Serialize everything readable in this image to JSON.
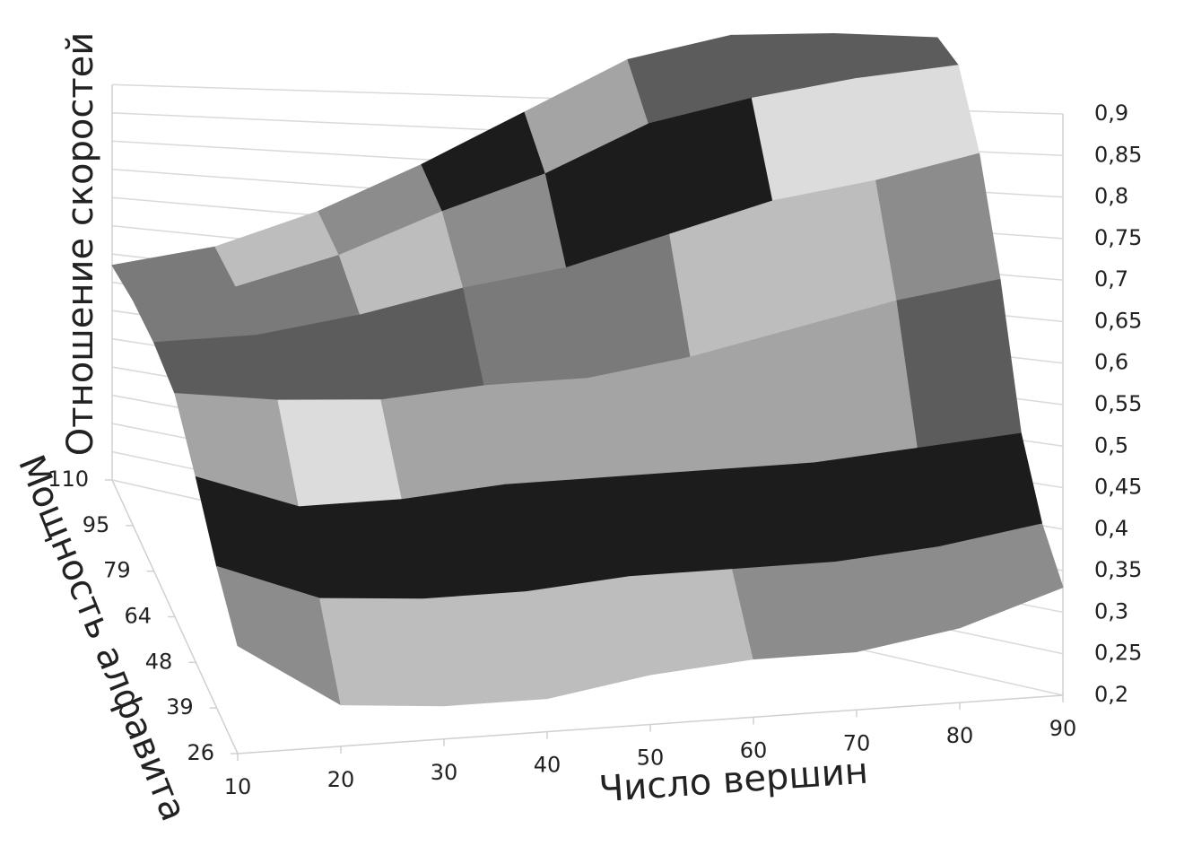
{
  "chart_data": {
    "type": "surface",
    "title": "Отношение скоростей",
    "x_label": "Число вершин",
    "depth_label": "Мощность алфавита",
    "x": [
      10,
      20,
      30,
      40,
      50,
      60,
      70,
      80,
      90
    ],
    "depth_categories": [
      "26",
      "39",
      "48",
      "64",
      "79",
      "95",
      "110"
    ],
    "values": [
      [
        0.33,
        0.25,
        0.24,
        0.24,
        0.26,
        0.27,
        0.27,
        0.29,
        0.33
      ],
      [
        0.38,
        0.33,
        0.32,
        0.32,
        0.33,
        0.33,
        0.33,
        0.34,
        0.36
      ],
      [
        0.45,
        0.4,
        0.4,
        0.41,
        0.41,
        0.41,
        0.41,
        0.42,
        0.43
      ],
      [
        0.52,
        0.5,
        0.49,
        0.5,
        0.5,
        0.52,
        0.55,
        0.58,
        0.6
      ],
      [
        0.55,
        0.55,
        0.57,
        0.6,
        0.62,
        0.66,
        0.7,
        0.72,
        0.75
      ],
      [
        0.57,
        0.58,
        0.62,
        0.68,
        0.73,
        0.8,
        0.83,
        0.85,
        0.86
      ],
      [
        0.58,
        0.6,
        0.65,
        0.72,
        0.8,
        0.88,
        0.91,
        0.9,
        0.88
      ]
    ],
    "zlim": [
      0.2,
      0.9
    ],
    "zticks": [
      {
        "value": 0.2,
        "label": "0,2"
      },
      {
        "value": 0.25,
        "label": "0,25"
      },
      {
        "value": 0.3,
        "label": "0,3"
      },
      {
        "value": 0.35,
        "label": "0,35"
      },
      {
        "value": 0.4,
        "label": "0,4"
      },
      {
        "value": 0.45,
        "label": "0,45"
      },
      {
        "value": 0.5,
        "label": "0,5"
      },
      {
        "value": 0.55,
        "label": "0,55"
      },
      {
        "value": 0.6,
        "label": "0,6"
      },
      {
        "value": 0.65,
        "label": "0,65"
      },
      {
        "value": 0.7,
        "label": "0,7"
      },
      {
        "value": 0.75,
        "label": "0,75"
      },
      {
        "value": 0.8,
        "label": "0,8"
      },
      {
        "value": 0.85,
        "label": "0,85"
      },
      {
        "value": 0.9,
        "label": "0,9"
      }
    ],
    "band_colors": [
      "#7a7a7a",
      "#bdbdbd",
      "#8c8c8c",
      "#1c1c1c",
      "#dcdcdc",
      "#a4a4a4",
      "#5c5c5c"
    ],
    "grid": true
  }
}
